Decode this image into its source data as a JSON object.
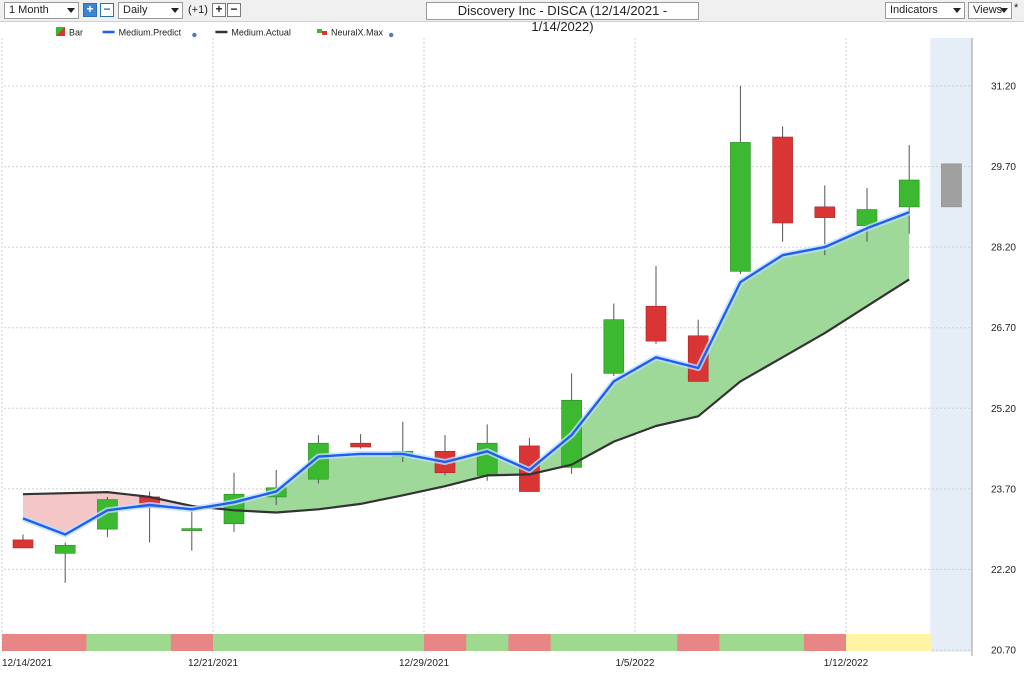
{
  "toolbar": {
    "period": "1 Month",
    "interval": "Daily",
    "offset": "(+1)",
    "title": "Discovery Inc - DISCA (12/14/2021 - 1/14/2022)",
    "indicators": "Indicators",
    "views": "Views",
    "asterisk": "*"
  },
  "chart_data": {
    "type": "candlestick",
    "legend": [
      {
        "name": "Bar",
        "icon": "bar-legend-icon"
      },
      {
        "name": "Medium.Predict",
        "color": "#1e5ef0"
      },
      {
        "name": "Medium.Actual",
        "color": "#333333"
      },
      {
        "name": "NeuralX.Max",
        "icon": "neuralx-legend-icon"
      }
    ],
    "y_ticks": [
      "31.20",
      "29.70",
      "28.20",
      "26.70",
      "25.20",
      "23.70",
      "22.20",
      "20.70"
    ],
    "y_range": [
      20.7,
      32.0
    ],
    "x_ticks": [
      {
        "label": "12/14/2021",
        "index": 0
      },
      {
        "label": "12/21/2021",
        "index": 5
      },
      {
        "label": "12/29/2021",
        "index": 10
      },
      {
        "label": "1/5/2022",
        "index": 15
      },
      {
        "label": "1/12/2022",
        "index": 20
      }
    ],
    "candles": [
      {
        "date": "12/14/2021",
        "open": 22.75,
        "high": 22.85,
        "low": 22.6,
        "close": 22.6
      },
      {
        "date": "12/15/2021",
        "open": 22.5,
        "high": 22.7,
        "low": 21.95,
        "close": 22.65
      },
      {
        "date": "12/16/2021",
        "open": 22.95,
        "high": 23.55,
        "low": 22.8,
        "close": 23.5
      },
      {
        "date": "12/17/2021",
        "open": 23.55,
        "high": 23.65,
        "low": 22.7,
        "close": 23.35
      },
      {
        "date": "12/20/2021",
        "open": 22.93,
        "high": 23.3,
        "low": 22.55,
        "close": 22.96
      },
      {
        "date": "12/21/2021",
        "open": 23.05,
        "high": 24.0,
        "low": 22.9,
        "close": 23.6
      },
      {
        "date": "12/22/2021",
        "open": 23.55,
        "high": 24.05,
        "low": 23.4,
        "close": 23.72
      },
      {
        "date": "12/23/2021",
        "open": 23.88,
        "high": 24.7,
        "low": 23.8,
        "close": 24.55
      },
      {
        "date": "12/27/2021",
        "open": 24.55,
        "high": 24.72,
        "low": 24.45,
        "close": 24.48
      },
      {
        "date": "12/28/2021",
        "open": 24.3,
        "high": 24.95,
        "low": 24.2,
        "close": 24.4
      },
      {
        "date": "12/29/2021",
        "open": 24.4,
        "high": 24.7,
        "low": 23.95,
        "close": 24.0
      },
      {
        "date": "12/30/2021",
        "open": 23.95,
        "high": 24.9,
        "low": 23.85,
        "close": 24.55
      },
      {
        "date": "12/31/2021",
        "open": 24.5,
        "high": 24.65,
        "low": 23.65,
        "close": 23.65
      },
      {
        "date": "1/3/2022",
        "open": 24.1,
        "high": 25.85,
        "low": 23.98,
        "close": 25.35
      },
      {
        "date": "1/4/2022",
        "open": 25.85,
        "high": 27.15,
        "low": 25.8,
        "close": 26.85
      },
      {
        "date": "1/5/2022",
        "open": 27.1,
        "high": 27.85,
        "low": 26.4,
        "close": 26.45
      },
      {
        "date": "1/6/2022",
        "open": 26.55,
        "high": 26.85,
        "low": 25.7,
        "close": 25.7
      },
      {
        "date": "1/7/2022",
        "open": 27.75,
        "high": 31.2,
        "low": 27.7,
        "close": 30.15
      },
      {
        "date": "1/10/2022",
        "open": 30.25,
        "high": 30.45,
        "low": 28.3,
        "close": 28.65
      },
      {
        "date": "1/11/2022",
        "open": 28.95,
        "high": 29.35,
        "low": 28.05,
        "close": 28.75
      },
      {
        "date": "1/12/2022",
        "open": 28.6,
        "high": 29.3,
        "low": 28.3,
        "close": 28.9
      },
      {
        "date": "1/13/2022",
        "open": 28.95,
        "high": 30.1,
        "low": 28.45,
        "close": 29.45
      }
    ],
    "forecast_bar": {
      "high": 29.75,
      "low": 28.95,
      "color": "#a0a0a0"
    },
    "medium_predict": [
      23.15,
      22.85,
      23.3,
      23.4,
      23.32,
      23.45,
      23.65,
      24.3,
      24.35,
      24.35,
      24.2,
      24.4,
      24.05,
      24.7,
      25.7,
      26.15,
      25.95,
      27.55,
      28.05,
      28.2,
      28.55,
      28.85
    ],
    "medium_actual": [
      23.6,
      23.62,
      23.64,
      23.55,
      23.38,
      23.3,
      23.26,
      23.32,
      23.42,
      23.58,
      23.75,
      23.95,
      23.97,
      24.15,
      24.58,
      24.87,
      25.05,
      25.7,
      26.15,
      26.6,
      27.1,
      27.6
    ],
    "signal_strip": [
      "red",
      "red",
      "green",
      "green",
      "red",
      "green",
      "green",
      "green",
      "green",
      "green",
      "red",
      "green",
      "red",
      "green",
      "green",
      "green",
      "red",
      "green",
      "green",
      "red",
      "yellow",
      "yellow"
    ],
    "colors": {
      "up": "#3cb931",
      "down": "#d93535",
      "fill_up": "#9fd99a",
      "fill_down": "#f5c6c6",
      "strip_red": "#e88585",
      "strip_green": "#9fd98f",
      "strip_yellow": "#fff4a3",
      "forecast_bg": "#e5edf6"
    }
  }
}
